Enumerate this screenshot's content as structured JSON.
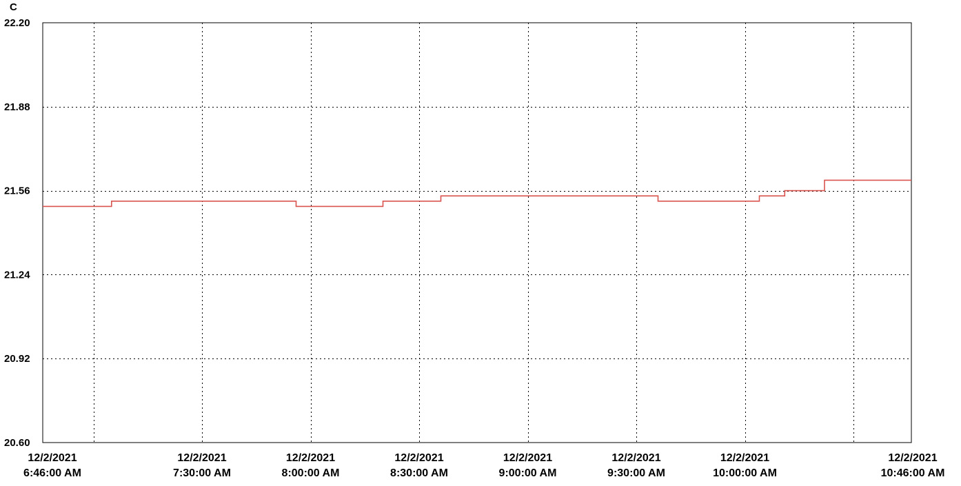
{
  "chart_data": {
    "type": "line",
    "step": true,
    "ylabel": "C",
    "ylim": [
      20.6,
      22.2
    ],
    "yticks": [
      {
        "value": 22.2,
        "label": "22.20"
      },
      {
        "value": 21.88,
        "label": "21.88"
      },
      {
        "value": 21.56,
        "label": "21.56"
      },
      {
        "value": 21.24,
        "label": "21.24"
      },
      {
        "value": 20.92,
        "label": "20.92"
      },
      {
        "value": 20.6,
        "label": "20.60"
      }
    ],
    "xlim": [
      "2021-12-02T06:46:00",
      "2021-12-02T10:46:00"
    ],
    "xticks": [
      {
        "time": "2021-12-02T06:46:00",
        "date": "12/2/2021",
        "time_label": "6:46:00 AM"
      },
      {
        "time": "2021-12-02T07:30:00",
        "date": "12/2/2021",
        "time_label": "7:30:00 AM"
      },
      {
        "time": "2021-12-02T08:00:00",
        "date": "12/2/2021",
        "time_label": "8:00:00 AM"
      },
      {
        "time": "2021-12-02T08:30:00",
        "date": "12/2/2021",
        "time_label": "8:30:00 AM"
      },
      {
        "time": "2021-12-02T09:00:00",
        "date": "12/2/2021",
        "time_label": "9:00:00 AM"
      },
      {
        "time": "2021-12-02T09:30:00",
        "date": "12/2/2021",
        "time_label": "9:30:00 AM"
      },
      {
        "time": "2021-12-02T10:00:00",
        "date": "12/2/2021",
        "time_label": "10:00:00 AM"
      },
      {
        "time": "2021-12-02T10:46:00",
        "date": "12/2/2021",
        "time_label": "10:46:00 AM"
      }
    ],
    "vgrid_times": [
      "2021-12-02T07:00:00",
      "2021-12-02T07:30:00",
      "2021-12-02T08:00:00",
      "2021-12-02T08:30:00",
      "2021-12-02T09:00:00",
      "2021-12-02T09:30:00",
      "2021-12-02T10:00:00",
      "2021-12-02T10:30:00"
    ],
    "grid": true,
    "series": [
      {
        "color": "#d9534f",
        "points": [
          {
            "x": "2021-12-02T06:46:00",
            "y": 21.5
          },
          {
            "x": "2021-12-02T07:05:00",
            "y": 21.52
          },
          {
            "x": "2021-12-02T07:56:00",
            "y": 21.5
          },
          {
            "x": "2021-12-02T08:20:00",
            "y": 21.52
          },
          {
            "x": "2021-12-02T08:36:00",
            "y": 21.54
          },
          {
            "x": "2021-12-02T09:36:00",
            "y": 21.52
          },
          {
            "x": "2021-12-02T10:04:00",
            "y": 21.54
          },
          {
            "x": "2021-12-02T10:11:00",
            "y": 21.56
          },
          {
            "x": "2021-12-02T10:22:00",
            "y": 21.6
          },
          {
            "x": "2021-12-02T10:46:00",
            "y": 21.6
          }
        ]
      }
    ]
  }
}
